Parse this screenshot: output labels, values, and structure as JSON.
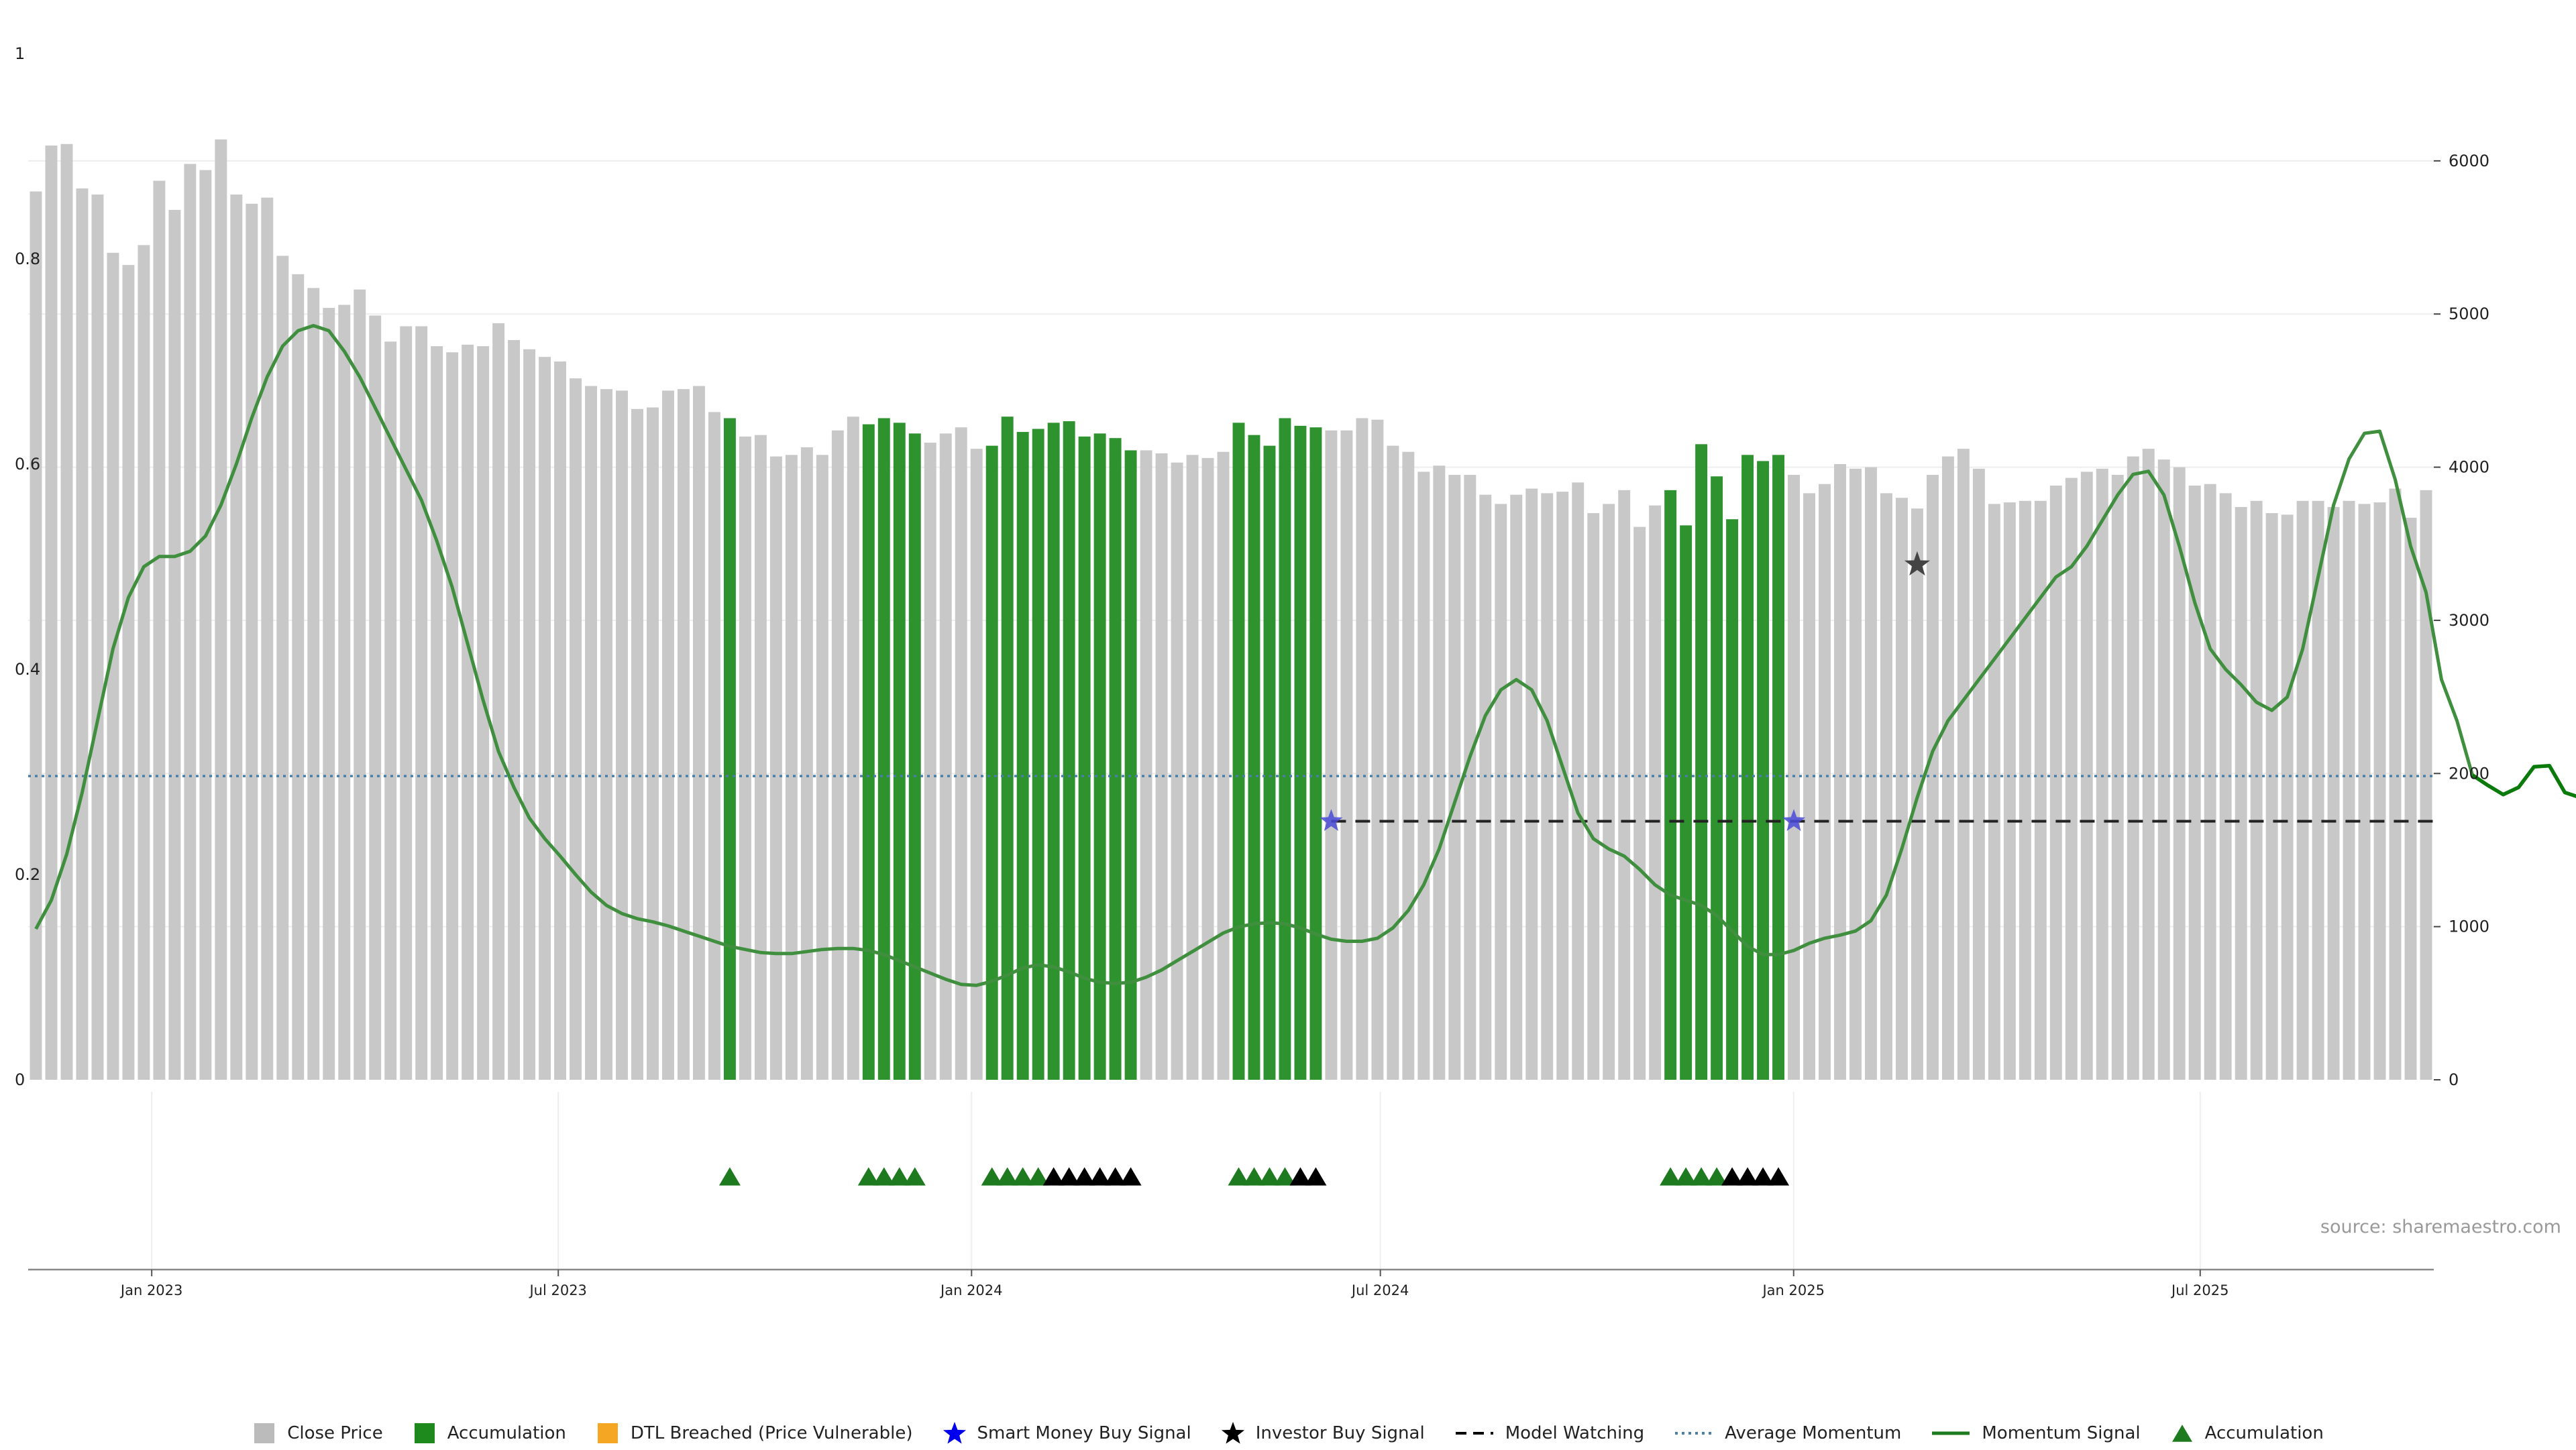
{
  "chart_data": {
    "type": "bar",
    "source_text": "source: sharemaestro.com",
    "x_ticks": [
      "Jan 2023",
      "Jul 2023",
      "Jan 2024",
      "Jul 2024",
      "Jan 2025",
      "Jul 2025"
    ],
    "x_range": [
      "2022-11-07",
      "2025-10-13"
    ],
    "left_axis": {
      "ticks": [
        "0",
        "0.2",
        "0.4",
        "0.6",
        "0.8",
        "1"
      ],
      "ylim": [
        0,
        1
      ]
    },
    "right_axis": {
      "ticks": [
        "0",
        "1000",
        "2000",
        "3000",
        "4000",
        "5000",
        "6000"
      ],
      "ylim": [
        0,
        6700
      ]
    },
    "grid": true,
    "legend_position": "bottom-center",
    "bars": {
      "start_date": "2022-11-07",
      "interval": "weekly",
      "close_price": [
        5800,
        6100,
        6110,
        5820,
        5780,
        5400,
        5320,
        5450,
        5870,
        5680,
        5980,
        5940,
        6140,
        5780,
        5720,
        5760,
        5380,
        5260,
        5170,
        5040,
        5060,
        5160,
        4990,
        4820,
        4920,
        4920,
        4790,
        4750,
        4800,
        4790,
        4940,
        4830,
        4770,
        4720,
        4690,
        4580,
        4530,
        4510,
        4500,
        4380,
        4390,
        4500,
        4510,
        4530,
        4360,
        4320,
        4200,
        4210,
        4070,
        4080,
        4130,
        4080,
        4240,
        4330,
        4280,
        4320,
        4290,
        4220,
        4160,
        4220,
        4260,
        4120,
        4140,
        4330,
        4230,
        4250,
        4290,
        4300,
        4200,
        4220,
        4190,
        4110,
        4110,
        4090,
        4030,
        4080,
        4060,
        4100,
        4290,
        4210,
        4140,
        4320,
        4270,
        4260,
        4240,
        4240,
        4320,
        4310,
        4140,
        4100,
        3970,
        4010,
        3950,
        3950,
        3820,
        3760,
        3820,
        3860,
        3830,
        3840,
        3900,
        3700,
        3760,
        3850,
        3610,
        3750,
        3850,
        3620,
        4150,
        3940,
        3660,
        4080,
        4040,
        4080,
        3950,
        3830,
        3890,
        4020,
        3990,
        4000,
        3830,
        3800,
        3730,
        3950,
        4070,
        4120,
        3990,
        3760,
        3770,
        3780,
        3780,
        3880,
        3930,
        3970,
        3990,
        3950,
        4070,
        4120,
        4050,
        4000,
        3880,
        3890,
        3830,
        3740,
        3780,
        3700,
        3690,
        3780,
        3780,
        3740,
        3780,
        3760,
        3770,
        3860,
        3670,
        3850
      ],
      "accumulation_ranges": [
        [
          45,
          45
        ],
        [
          54,
          57
        ],
        [
          62,
          71
        ],
        [
          78,
          83
        ],
        [
          106,
          113
        ]
      ]
    },
    "series": [
      {
        "name": "Momentum Signal",
        "axis": "left",
        "values": [
          0.147,
          0.175,
          0.22,
          0.28,
          0.35,
          0.42,
          0.47,
          0.5,
          0.51,
          0.51,
          0.515,
          0.53,
          0.56,
          0.6,
          0.645,
          0.685,
          0.715,
          0.73,
          0.735,
          0.73,
          0.71,
          0.685,
          0.655,
          0.625,
          0.595,
          0.565,
          0.525,
          0.48,
          0.425,
          0.37,
          0.32,
          0.285,
          0.255,
          0.235,
          0.218,
          0.2,
          0.183,
          0.17,
          0.162,
          0.157,
          0.154,
          0.15,
          0.145,
          0.14,
          0.135,
          0.13,
          0.127,
          0.124,
          0.123,
          0.123,
          0.125,
          0.127,
          0.128,
          0.128,
          0.126,
          0.122,
          0.116,
          0.11,
          0.104,
          0.098,
          0.093,
          0.092,
          0.096,
          0.102,
          0.109,
          0.112,
          0.11,
          0.105,
          0.099,
          0.095,
          0.094,
          0.095,
          0.1,
          0.107,
          0.116,
          0.125,
          0.134,
          0.143,
          0.149,
          0.152,
          0.153,
          0.152,
          0.148,
          0.142,
          0.137,
          0.135,
          0.135,
          0.138,
          0.148,
          0.165,
          0.19,
          0.225,
          0.27,
          0.315,
          0.355,
          0.38,
          0.39,
          0.38,
          0.35,
          0.305,
          0.26,
          0.235,
          0.225,
          0.218,
          0.205,
          0.19,
          0.18,
          0.175,
          0.17,
          0.16,
          0.145,
          0.13,
          0.122,
          0.122,
          0.126,
          0.133,
          0.138,
          0.141,
          0.145,
          0.155,
          0.18,
          0.225,
          0.275,
          0.32,
          0.35,
          0.37,
          0.39,
          0.41,
          0.43,
          0.45,
          0.47,
          0.49,
          0.5,
          0.52,
          0.545,
          0.57,
          0.59,
          0.593,
          0.57,
          0.52,
          0.465,
          0.42,
          0.4,
          0.385,
          0.368,
          0.36,
          0.373,
          0.42,
          0.49,
          0.56,
          0.605,
          0.63,
          0.632,
          0.585,
          0.52,
          0.475,
          0.39,
          0.35,
          0.297,
          0.287,
          0.278,
          0.285,
          0.305,
          0.306,
          0.28,
          0.275,
          0.253
        ]
      },
      {
        "name": "Average Momentum",
        "axis": "left",
        "value": 0.296
      },
      {
        "name": "Model Watching",
        "axis": "left",
        "value": 0.252,
        "from_index": 84
      }
    ],
    "smart_money_buy_signals": [
      {
        "index": 84,
        "y": 0.252
      },
      {
        "index": 114,
        "y": 0.252
      }
    ],
    "investor_buy_signals": [
      {
        "index": 122,
        "y": 0.502
      }
    ],
    "accumulation_markers": {
      "green": [
        45,
        54,
        55,
        56,
        57,
        62,
        63,
        64,
        65,
        78,
        79,
        80,
        81,
        106,
        107,
        108,
        109
      ],
      "black": [
        66,
        67,
        68,
        69,
        70,
        71,
        82,
        83,
        110,
        111,
        112,
        113
      ]
    },
    "legend": [
      {
        "label": "Close Price",
        "symbol": "square",
        "color": "#bbbbbb"
      },
      {
        "label": "Accumulation",
        "symbol": "square",
        "color": "#1e8a1e"
      },
      {
        "label": "DTL Breached (Price Vulnerable)",
        "symbol": "square",
        "color": "#f5a623"
      },
      {
        "label": "Smart Money Buy Signal",
        "symbol": "star",
        "color": "#0000ee"
      },
      {
        "label": "Investor Buy Signal",
        "symbol": "star",
        "color": "#000000"
      },
      {
        "label": "Model Watching",
        "symbol": "dash",
        "color": "#000000"
      },
      {
        "label": "Average Momentum",
        "symbol": "dot",
        "color": "#4a7fa8"
      },
      {
        "label": "Momentum Signal",
        "symbol": "line",
        "color": "#1e7a1e"
      },
      {
        "label": "Accumulation",
        "symbol": "triangle",
        "color": "#1e7a1e"
      }
    ],
    "colors": {
      "close_bar": "#c8c8c8",
      "accumulation_bar": "#2e922e",
      "momentum_line": "#3f8f3f",
      "momentum_line_recent": "#0a7a0a",
      "avg_momentum": "#4a7fa8",
      "model_watching": "#222222",
      "smart_money_star": "#4a4ad8",
      "investor_star": "#444444",
      "marker_green": "#1e7a1e",
      "marker_black": "#000000"
    }
  }
}
